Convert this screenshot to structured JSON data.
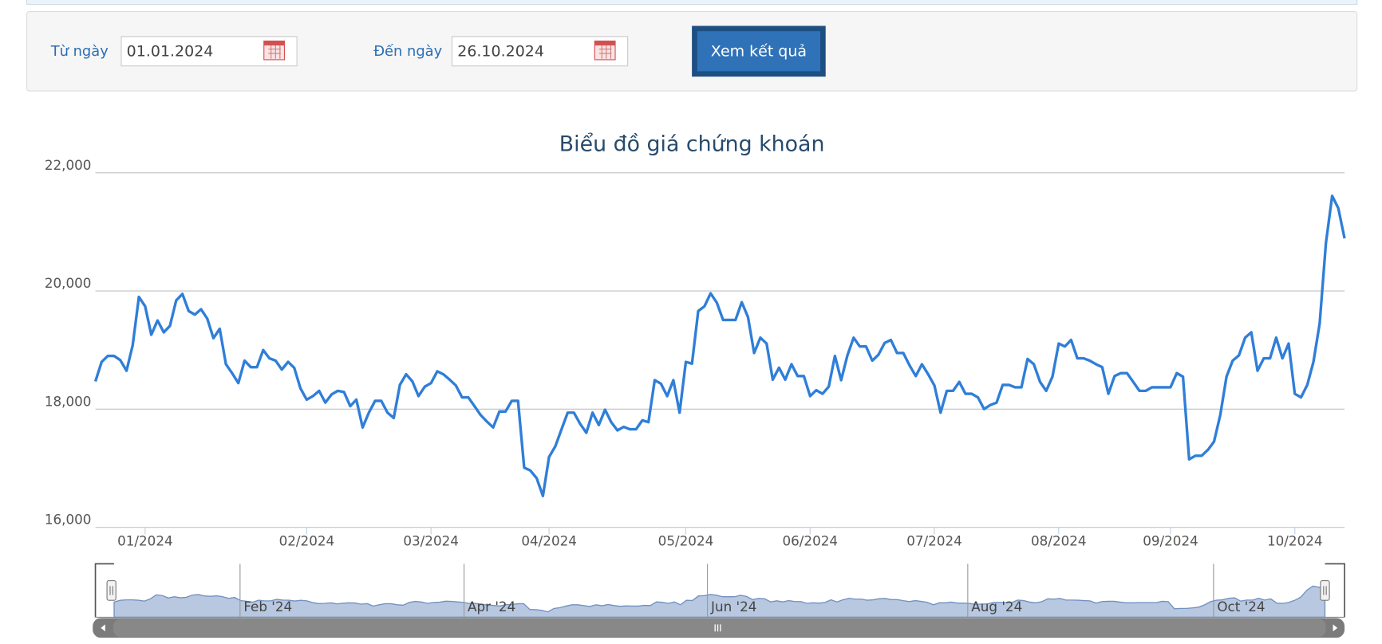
{
  "form": {
    "from_label": "Từ ngày",
    "from_value": "01.01.2024",
    "to_label": "Đến ngày",
    "to_value": "26.10.2024",
    "button": "Xem kết quả"
  },
  "chart_data": {
    "type": "line",
    "title": "Biểu đồ giá chứng khoán",
    "color": "#2f7ed8",
    "ylim": [
      16000,
      22000
    ],
    "yticks": [
      {
        "value": 16000,
        "label": "16,000"
      },
      {
        "value": 18000,
        "label": "18,000"
      },
      {
        "value": 20000,
        "label": "20,000"
      },
      {
        "value": 22000,
        "label": "22,000"
      }
    ],
    "grid": true,
    "categories": [
      null,
      null,
      null,
      null,
      null,
      null,
      null,
      null,
      "01/2024",
      null,
      null,
      null,
      null,
      null,
      null,
      null,
      null,
      null,
      null,
      null,
      null,
      null,
      null,
      null,
      null,
      null,
      null,
      null,
      null,
      null,
      null,
      null,
      null,
      null,
      "02/2024",
      null,
      null,
      null,
      null,
      null,
      null,
      null,
      null,
      null,
      null,
      null,
      null,
      null,
      null,
      null,
      null,
      null,
      null,
      null,
      "03/2024",
      null,
      null,
      null,
      null,
      null,
      null,
      null,
      null,
      null,
      null,
      null,
      null,
      null,
      null,
      null,
      null,
      null,
      null,
      "04/2024",
      null,
      null,
      null,
      null,
      null,
      null,
      null,
      null,
      null,
      null,
      null,
      null,
      null,
      null,
      null,
      null,
      null,
      null,
      null,
      null,
      null,
      "05/2024",
      null,
      null,
      null,
      null,
      null,
      null,
      null,
      null,
      null,
      null,
      null,
      null,
      null,
      null,
      null,
      null,
      null,
      null,
      null,
      "06/2024",
      null,
      null,
      null,
      null,
      null,
      null,
      null,
      null,
      null,
      null,
      null,
      null,
      null,
      null,
      null,
      null,
      null,
      null,
      null,
      "07/2024",
      null,
      null,
      null,
      null,
      null,
      null,
      null,
      null,
      null,
      null,
      null,
      null,
      null,
      null,
      null,
      null,
      null,
      null,
      null,
      "08/2024",
      null,
      null,
      null,
      null,
      null,
      null,
      null,
      null,
      null,
      null,
      null,
      null,
      null,
      null,
      null,
      null,
      null,
      "09/2024",
      null,
      null,
      null,
      null,
      null,
      null,
      null,
      null,
      null,
      null,
      null,
      null,
      null,
      null,
      null,
      null,
      null,
      null,
      null,
      "10/2024",
      null,
      null,
      null,
      null,
      null,
      null,
      null,
      null
    ],
    "values": [
      18470,
      18800,
      18900,
      18900,
      18830,
      18650,
      19080,
      19900,
      19740,
      19260,
      19500,
      19300,
      19410,
      19840,
      19950,
      19660,
      19600,
      19690,
      19530,
      19200,
      19360,
      18760,
      18610,
      18440,
      18820,
      18710,
      18710,
      19000,
      18860,
      18820,
      18670,
      18800,
      18700,
      18350,
      18160,
      18220,
      18310,
      18110,
      18250,
      18310,
      18290,
      18050,
      18160,
      17690,
      17940,
      18140,
      18140,
      17940,
      17850,
      18410,
      18590,
      18470,
      18220,
      18380,
      18440,
      18640,
      18590,
      18500,
      18400,
      18200,
      18200,
      18050,
      17900,
      17790,
      17690,
      17960,
      17960,
      18140,
      18140,
      17010,
      16960,
      16830,
      16530,
      17190,
      17370,
      17660,
      17940,
      17940,
      17750,
      17600,
      17940,
      17730,
      17990,
      17780,
      17640,
      17700,
      17660,
      17660,
      17810,
      17780,
      18490,
      18430,
      18220,
      18490,
      17940,
      18800,
      18770,
      19660,
      19740,
      19960,
      19800,
      19510,
      19510,
      19510,
      19810,
      19560,
      18950,
      19210,
      19110,
      18500,
      18700,
      18500,
      18760,
      18560,
      18560,
      18220,
      18320,
      18260,
      18380,
      18900,
      18490,
      18910,
      19210,
      19060,
      19060,
      18820,
      18920,
      19120,
      19170,
      18950,
      18950,
      18740,
      18560,
      18760,
      18590,
      18400,
      17940,
      18310,
      18310,
      18460,
      18260,
      18260,
      18200,
      18000,
      18070,
      18110,
      18410,
      18410,
      18370,
      18370,
      18850,
      18760,
      18460,
      18310,
      18550,
      19110,
      19060,
      19170,
      18860,
      18860,
      18820,
      18760,
      18710,
      18260,
      18560,
      18610,
      18610,
      18460,
      18310,
      18310,
      18370,
      18370,
      18370,
      18370,
      18610,
      18550,
      17150,
      17210,
      17210,
      17310,
      17450,
      17900,
      18550,
      18820,
      18910,
      19210,
      19300,
      18650,
      18860,
      18860,
      19210,
      18860,
      19110,
      18260,
      18200,
      18410,
      18800,
      19450,
      20810,
      21610,
      21400,
      20890
    ],
    "navigator_labels": [
      "Feb '24",
      "Apr '24",
      "Jun '24",
      "Aug '24",
      "Oct '24"
    ]
  }
}
